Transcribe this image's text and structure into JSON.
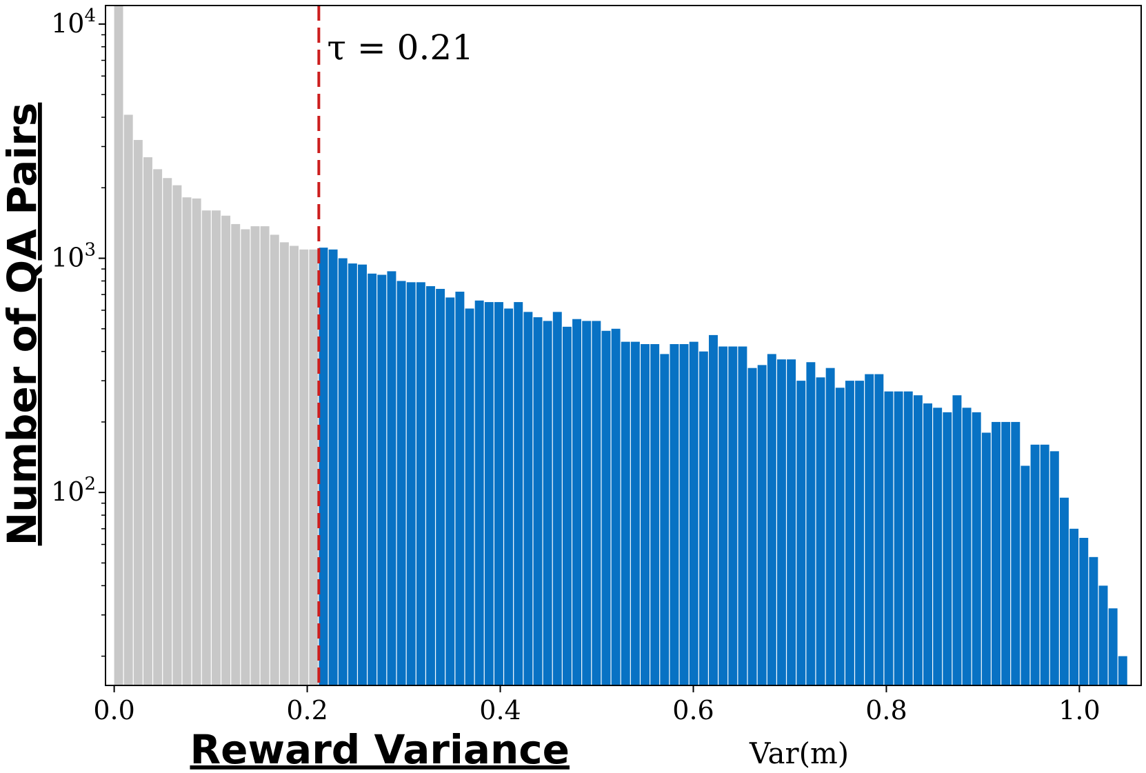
{
  "chart_data": {
    "type": "bar",
    "title": "",
    "xlabel": "Reward Variance",
    "xlabel_math": "Var(m)",
    "ylabel": "Number of QA Pairs",
    "yscale": "log",
    "xlim": [
      -0.009,
      1.064
    ],
    "ylim": [
      15,
      12000
    ],
    "xticks": [
      0.0,
      0.2,
      0.4,
      0.6,
      0.8,
      1.0
    ],
    "xtick_labels": [
      "0.0",
      "0.2",
      "0.4",
      "0.6",
      "0.8",
      "1.0"
    ],
    "ytick_bases": [
      "10",
      "10",
      "10"
    ],
    "ytick_exps": [
      "2",
      "3",
      "4"
    ],
    "ytick_values": [
      100,
      1000,
      10000
    ],
    "grid": false,
    "bin_width": 0.0101,
    "bin_start": 0.0,
    "threshold": {
      "value": 0.212,
      "label": "τ = 0.21",
      "color": "#cc1e1e",
      "style": "dashed"
    },
    "colors": {
      "below_threshold": "#c8c8c8",
      "above_threshold": "#0872c4"
    },
    "values": [
      12000,
      4100,
      3200,
      2700,
      2400,
      2200,
      2050,
      1820,
      1800,
      1600,
      1600,
      1520,
      1400,
      1330,
      1370,
      1370,
      1260,
      1170,
      1130,
      1090,
      1090,
      1110,
      1090,
      1000,
      950,
      940,
      860,
      850,
      880,
      800,
      790,
      790,
      760,
      740,
      680,
      720,
      610,
      660,
      650,
      650,
      610,
      650,
      590,
      560,
      540,
      590,
      510,
      550,
      540,
      540,
      490,
      500,
      440,
      440,
      430,
      430,
      390,
      430,
      430,
      440,
      400,
      470,
      420,
      420,
      420,
      340,
      350,
      390,
      370,
      370,
      300,
      360,
      310,
      340,
      280,
      300,
      300,
      320,
      320,
      270,
      270,
      270,
      260,
      240,
      230,
      220,
      260,
      230,
      220,
      180,
      200,
      200,
      200,
      130,
      160,
      160,
      150,
      95,
      70,
      64,
      53,
      40,
      32,
      20
    ]
  }
}
